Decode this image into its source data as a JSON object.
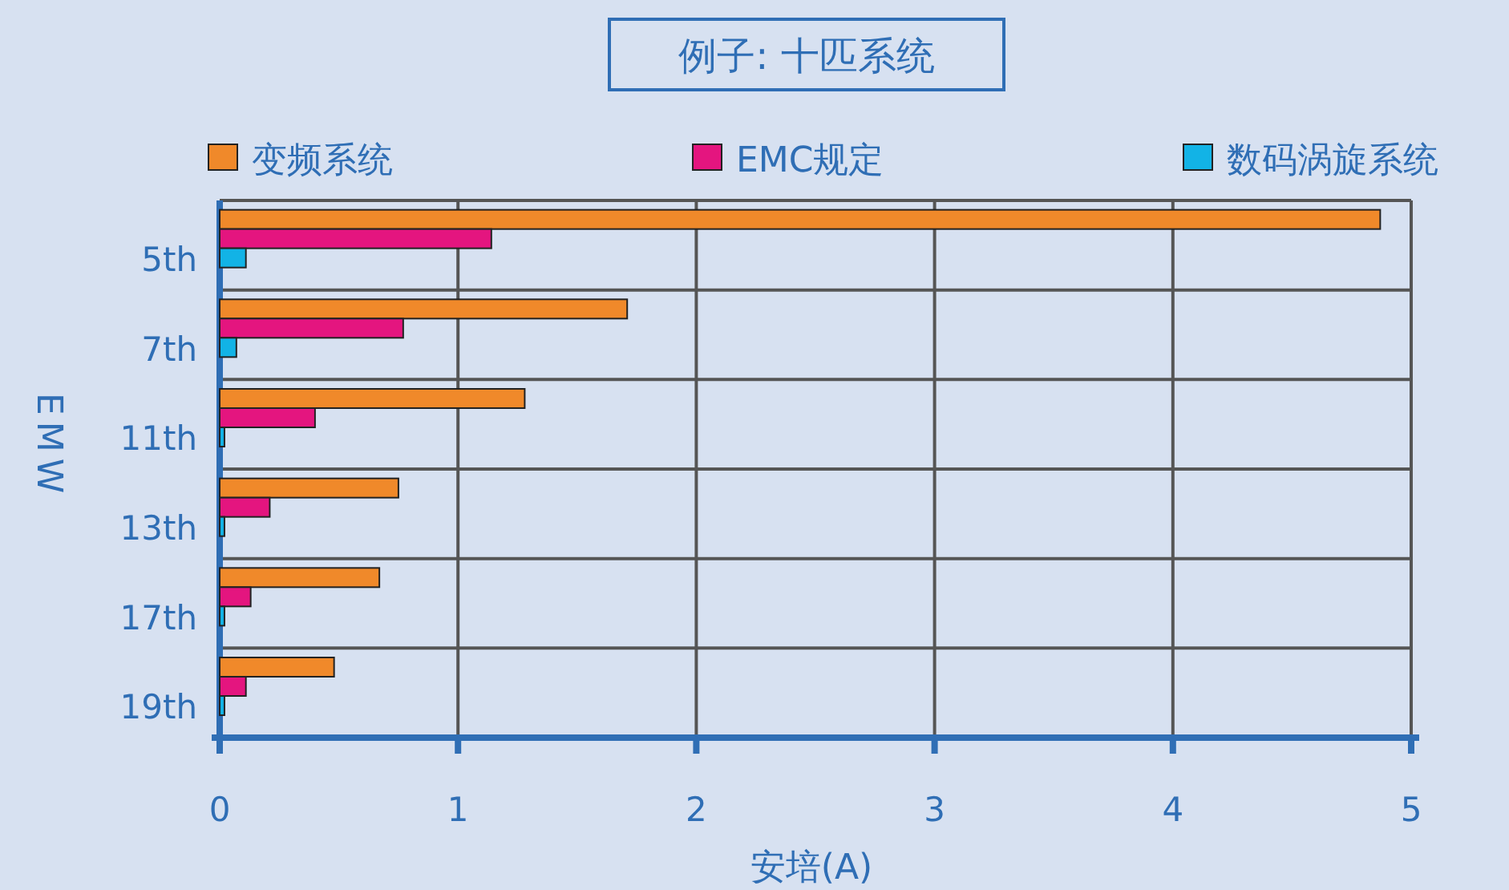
{
  "chart_data": {
    "type": "bar",
    "orientation": "horizontal",
    "title": "例子: 十匹系统",
    "xlabel": "安培(A)",
    "ylabel": "EMW",
    "categories": [
      "5th",
      "7th",
      "11th",
      "13th",
      "17th",
      "19th"
    ],
    "series": [
      {
        "name": "变频系统",
        "color": "#f0892a",
        "values": [
          4.87,
          1.71,
          1.28,
          0.75,
          0.67,
          0.48
        ]
      },
      {
        "name": "EMC规定",
        "color": "#e4157f",
        "values": [
          1.14,
          0.77,
          0.4,
          0.21,
          0.13,
          0.11
        ]
      },
      {
        "name": "数码涡旋系统",
        "color": "#12b3e6",
        "values": [
          0.11,
          0.07,
          0.02,
          0.02,
          0.02,
          0.02
        ]
      }
    ],
    "xlim": [
      0,
      5
    ],
    "xticks": [
      0,
      1,
      2,
      3,
      4,
      5
    ],
    "grid": true,
    "legend": "top"
  }
}
